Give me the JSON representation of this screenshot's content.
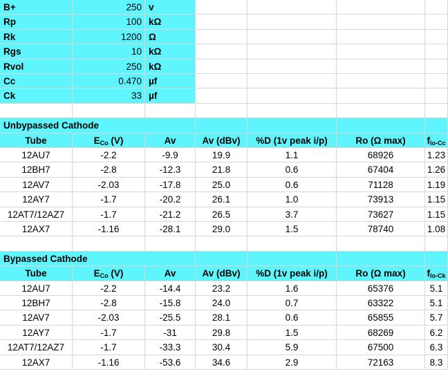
{
  "params": [
    {
      "name": "B+",
      "value": "250",
      "unit": "v"
    },
    {
      "name": "Rp",
      "value": "100",
      "unit": "kΩ"
    },
    {
      "name": "Rk",
      "value": "1200",
      "unit": "Ω"
    },
    {
      "name": "Rgs",
      "value": "10",
      "unit": "kΩ"
    },
    {
      "name": "Rvol",
      "value": "250",
      "unit": "kΩ"
    },
    {
      "name": "Cc",
      "value": "0.470",
      "unit": "µf"
    },
    {
      "name": "Ck",
      "value": "33",
      "unit": "µf"
    }
  ],
  "unbypassed": {
    "title": "Unbypassed Cathode",
    "headers": {
      "tube": "Tube",
      "eco": "E",
      "eco_sub": "Co",
      "eco_unit": " (V)",
      "av": "Av",
      "avdb": "Av (dBv)",
      "dist": "%D (1v peak i/p)",
      "ro": "Ro (Ω max)",
      "f": "f",
      "f_sub": "lo-Cc"
    },
    "rows": [
      {
        "tube": "12AU7",
        "eco": "-2.2",
        "av": "-9.9",
        "avdb": "19.9",
        "dist": "1.1",
        "ro": "68926",
        "f": "1.23"
      },
      {
        "tube": "12BH7",
        "eco": "-2.8",
        "av": "-12.3",
        "avdb": "21.8",
        "dist": "0.6",
        "ro": "67404",
        "f": "1.26"
      },
      {
        "tube": "12AV7",
        "eco": "-2.03",
        "av": "-17.8",
        "avdb": "25.0",
        "dist": "0.6",
        "ro": "71128",
        "f": "1.19"
      },
      {
        "tube": "12AY7",
        "eco": "-1.7",
        "av": "-20.2",
        "avdb": "26.1",
        "dist": "1.0",
        "ro": "73913",
        "f": "1.15"
      },
      {
        "tube": "12AT7/12AZ7",
        "eco": "-1.7",
        "av": "-21.2",
        "avdb": "26.5",
        "dist": "3.7",
        "ro": "73627",
        "f": "1.15"
      },
      {
        "tube": "12AX7",
        "eco": "-1.16",
        "av": "-28.1",
        "avdb": "29.0",
        "dist": "1.5",
        "ro": "78740",
        "f": "1.08"
      }
    ]
  },
  "bypassed": {
    "title": "Bypassed Cathode",
    "headers": {
      "tube": "Tube",
      "eco": "E",
      "eco_sub": "Co",
      "eco_unit": " (V)",
      "av": "Av",
      "avdb": "Av (dBv)",
      "dist": "%D (1v peak i/p)",
      "ro": "Ro (Ω max)",
      "f": "f",
      "f_sub": "lo-Ck"
    },
    "rows": [
      {
        "tube": "12AU7",
        "eco": "-2.2",
        "av": "-14.4",
        "avdb": "23.2",
        "dist": "1.6",
        "ro": "65376",
        "f": "5.1"
      },
      {
        "tube": "12BH7",
        "eco": "-2.8",
        "av": "-15.8",
        "avdb": "24.0",
        "dist": "0.7",
        "ro": "63322",
        "f": "5.1"
      },
      {
        "tube": "12AV7",
        "eco": "-2.03",
        "av": "-25.5",
        "avdb": "28.1",
        "dist": "0.6",
        "ro": "65855",
        "f": "5.7"
      },
      {
        "tube": "12AY7",
        "eco": "-1.7",
        "av": "-31",
        "avdb": "29.8",
        "dist": "1.5",
        "ro": "68269",
        "f": "6.2"
      },
      {
        "tube": "12AT7/12AZ7",
        "eco": "-1.7",
        "av": "-33.3",
        "avdb": "30.4",
        "dist": "5.9",
        "ro": "67500",
        "f": "6.3"
      },
      {
        "tube": "12AX7",
        "eco": "-1.16",
        "av": "-53.6",
        "avdb": "34.6",
        "dist": "2.9",
        "ro": "72163",
        "f": "8.3"
      }
    ]
  }
}
